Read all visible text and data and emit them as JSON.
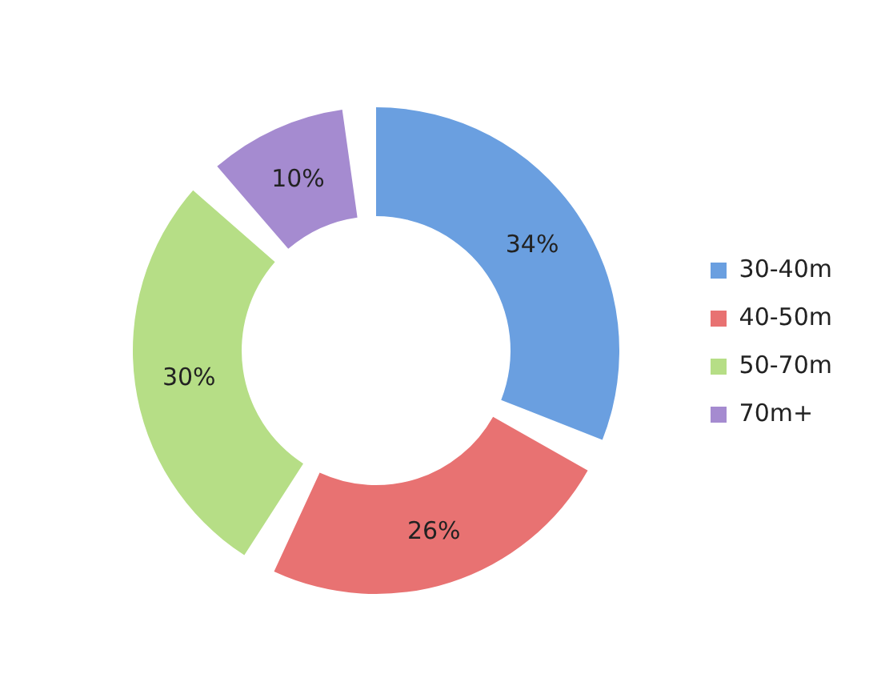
{
  "chart_data": {
    "type": "donut",
    "categories": [
      "30-40m",
      "40-50m",
      "50-70m",
      "70m+"
    ],
    "values": [
      34,
      26,
      30,
      10
    ],
    "colors": [
      "#6a9fe0",
      "#e87272",
      "#b6de86",
      "#a58bd0"
    ],
    "value_labels": [
      "34%",
      "26%",
      "30%",
      "10%"
    ],
    "legend": "right"
  }
}
